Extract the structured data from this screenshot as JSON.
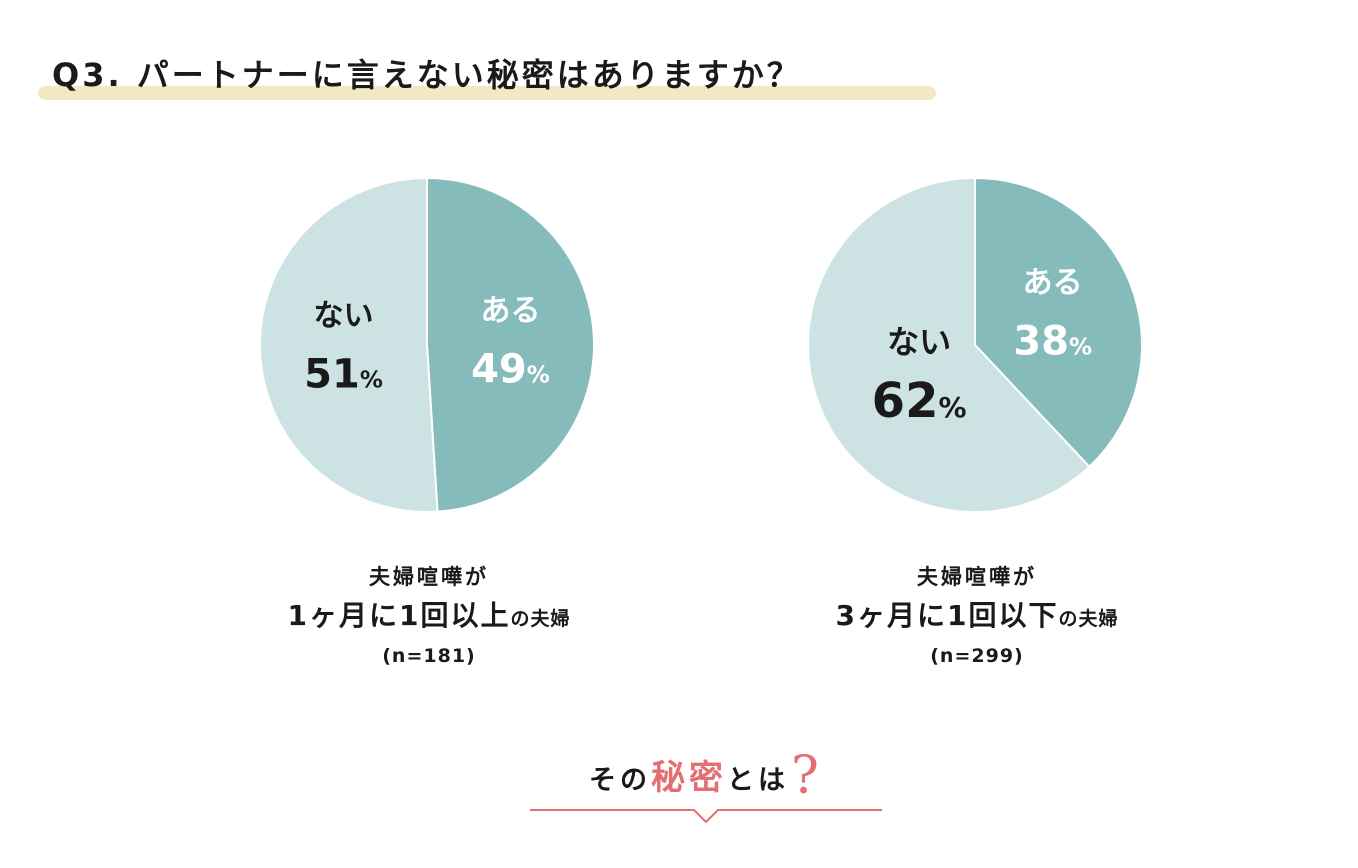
{
  "title": "Q3. パートナーに言えない秘密はありますか？",
  "colors": {
    "aru": "#86bbbb",
    "nai": "#cde3e3",
    "accent": "#e46f73",
    "highlight": "#f2e8c4"
  },
  "chart_data": [
    {
      "type": "pie",
      "title": "",
      "slices": [
        {
          "label": "ある",
          "value": 49,
          "display": "49",
          "color": "#86bbbb"
        },
        {
          "label": "ない",
          "value": 51,
          "display": "51",
          "color": "#cde3e3"
        }
      ],
      "unit": "%"
    },
    {
      "type": "pie",
      "title": "",
      "slices": [
        {
          "label": "ある",
          "value": 38,
          "display": "38",
          "color": "#86bbbb"
        },
        {
          "label": "ない",
          "value": 62,
          "display": "62",
          "color": "#cde3e3"
        }
      ],
      "unit": "%"
    }
  ],
  "captions": [
    {
      "line1": "夫婦喧嘩が",
      "line2_main": "1ヶ月に1回以上",
      "line2_small": "の夫婦",
      "line3": "(n=181)"
    },
    {
      "line1": "夫婦喧嘩が",
      "line2_main": "3ヶ月に1回以下",
      "line2_small": "の夫婦",
      "line3": "(n=299)"
    }
  ],
  "footer": {
    "prefix": "その",
    "accent": "秘密",
    "suffix": "とは",
    "qmark": "?"
  }
}
